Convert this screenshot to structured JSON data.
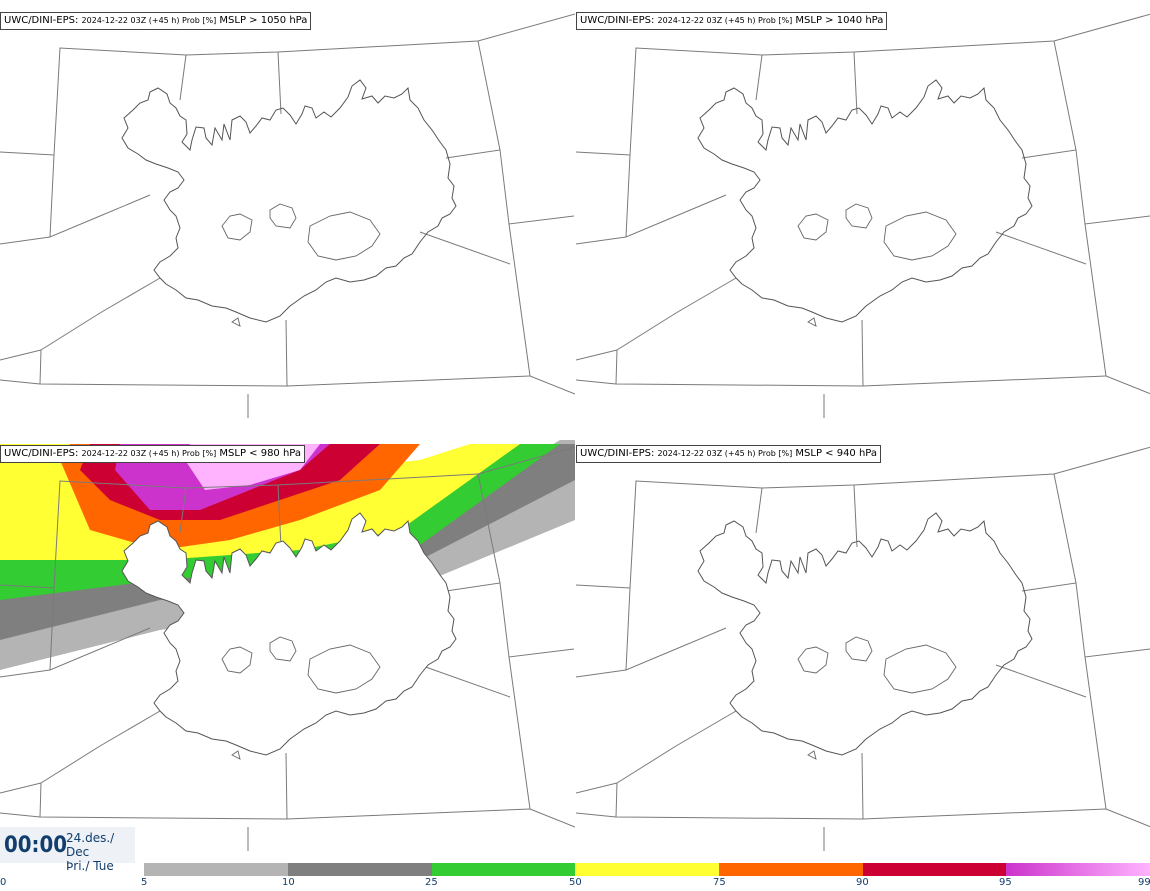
{
  "panels": [
    {
      "model": "UWC/DINI-EPS",
      "run": "2024-12-22 03Z (+45 h) Prob [%]",
      "param": "MSLP > 1050 hPa",
      "shaded": false
    },
    {
      "model": "UWC/DINI-EPS",
      "run": "2024-12-22 03Z (+45 h) Prob [%]",
      "param": "MSLP > 1040 hPa",
      "shaded": false
    },
    {
      "model": "UWC/DINI-EPS",
      "run": "2024-12-22 03Z (+45 h) Prob [%]",
      "param": "MSLP < 980 hPa",
      "shaded": true
    },
    {
      "model": "UWC/DINI-EPS",
      "run": "2024-12-22 03Z (+45 h) Prob [%]",
      "param": "MSLP < 940 hPa",
      "shaded": false
    }
  ],
  "time": {
    "clock": "00:00",
    "date_line1": "24.des./ Dec",
    "date_line2": "Þri./ Tue"
  },
  "colorbar": {
    "ticks": [
      "0",
      "5",
      "10",
      "25",
      "50",
      "75",
      "90",
      "95",
      "99"
    ],
    "segments": [
      {
        "from": 5,
        "to": 10,
        "color": "#b4b4b4"
      },
      {
        "from": 10,
        "to": 25,
        "color": "#7f7f7f"
      },
      {
        "from": 25,
        "to": 50,
        "color": "#33cc33"
      },
      {
        "from": 50,
        "to": 75,
        "color": "#ffff33"
      },
      {
        "from": 75,
        "to": 90,
        "color": "#ff6600"
      },
      {
        "from": 90,
        "to": 95,
        "color": "#cc0033"
      },
      {
        "from": 95,
        "to": 99,
        "color": "#cc33cc",
        "to_color": "#ffb3ff"
      }
    ]
  }
}
